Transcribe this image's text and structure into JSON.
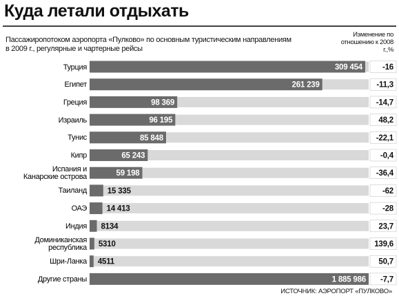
{
  "chart_data": {
    "type": "bar",
    "title": "Куда летали отдыхать",
    "subtitle": "Пассажиропотоком аэропорта «Пулково» по основным туристическим направлениям в 2009 г., регулярные и чартерные рейсы",
    "change_header": "Изменение по отношению к 2008 г.,%",
    "source": "ИСТОЧНИК: АЭРОПОРТ «ПУЛКОВО»",
    "categories": [
      "Турция",
      "Египет",
      "Греция",
      "Израиль",
      "Тунис",
      "Кипр",
      "Испания и\nКанарские острова",
      "Таиланд",
      "ОАЭ",
      "Индия",
      "Доминиканская\nреспублика",
      "Шри-Ланка",
      "Другие страны"
    ],
    "values": [
      309454,
      261239,
      98369,
      96195,
      85848,
      65243,
      59198,
      15335,
      14413,
      8134,
      5310,
      4511,
      1885986
    ],
    "value_labels": [
      "309 454",
      "261 239",
      "98 369",
      "96 195",
      "85 848",
      "65 243",
      "59 198",
      "15 335",
      "14 413",
      "8134",
      "5310",
      "4511",
      "1 885 986"
    ],
    "color": "#6b6b6b",
    "change_values": [
      -16,
      -11.3,
      -14.7,
      48.2,
      -22.1,
      -0.4,
      -36.4,
      -62,
      -28,
      23.7,
      139.6,
      50.7,
      -7.7
    ],
    "change_labels": [
      "-16",
      "-11,3",
      "-14,7",
      "48,2",
      "-22,1",
      "-0,4",
      "-36,4",
      "-62",
      "-28",
      "23,7",
      "139,6",
      "50,7",
      "-7,7"
    ]
  }
}
